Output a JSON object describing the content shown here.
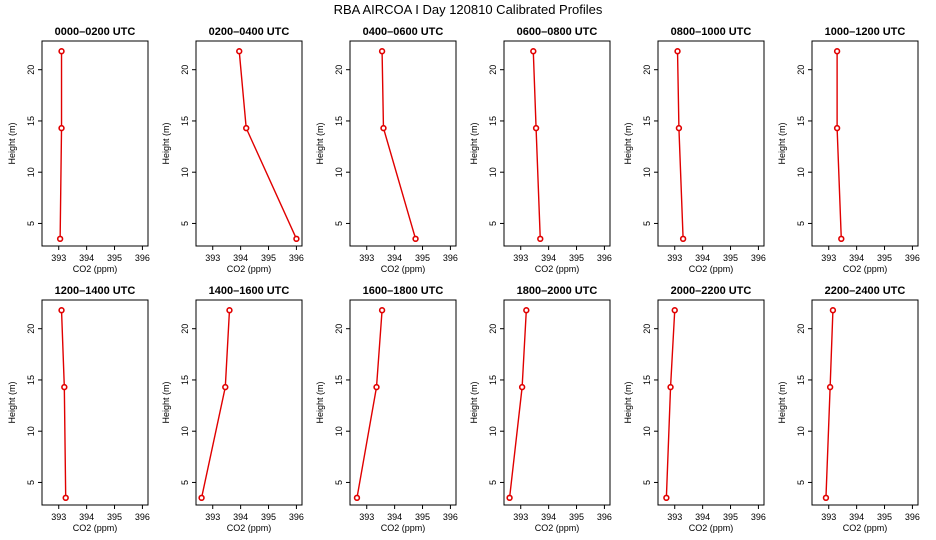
{
  "figure": {
    "title": "RBA AIRCOA I  Day 120810  Calibrated Profiles"
  },
  "colors": {
    "series": "#e00000",
    "frame": "#000000",
    "background": "#ffffff"
  },
  "chart_data": [
    {
      "type": "line",
      "title": "0000–0200 UTC",
      "xlabel": "CO2 (ppm)",
      "ylabel": "Height (m)",
      "xlim": [
        392.4,
        396.2
      ],
      "ylim": [
        2.8,
        22.8
      ],
      "xticks": [
        "393",
        "394",
        "395",
        "396"
      ],
      "yticks": [
        "5",
        "10",
        "15",
        "20"
      ],
      "grid": false,
      "series": [
        {
          "x": [
            393.05,
            393.1,
            393.1
          ],
          "y": [
            3.5,
            14.3,
            21.8
          ]
        }
      ]
    },
    {
      "type": "line",
      "title": "0200–0400 UTC",
      "xlabel": "CO2 (ppm)",
      "ylabel": "Height (m)",
      "xlim": [
        392.4,
        396.2
      ],
      "ylim": [
        2.8,
        22.8
      ],
      "xticks": [
        "393",
        "394",
        "395",
        "396"
      ],
      "yticks": [
        "5",
        "10",
        "15",
        "20"
      ],
      "grid": false,
      "series": [
        {
          "x": [
            396.0,
            394.2,
            393.95
          ],
          "y": [
            3.5,
            14.3,
            21.8
          ]
        }
      ]
    },
    {
      "type": "line",
      "title": "0400–0600 UTC",
      "xlabel": "CO2 (ppm)",
      "ylabel": "Height (m)",
      "xlim": [
        392.4,
        396.2
      ],
      "ylim": [
        2.8,
        22.8
      ],
      "xticks": [
        "393",
        "394",
        "395",
        "396"
      ],
      "yticks": [
        "5",
        "10",
        "15",
        "20"
      ],
      "grid": false,
      "series": [
        {
          "x": [
            394.75,
            393.6,
            393.55
          ],
          "y": [
            3.5,
            14.3,
            21.8
          ]
        }
      ]
    },
    {
      "type": "line",
      "title": "0600–0800 UTC",
      "xlabel": "CO2 (ppm)",
      "ylabel": "Height (m)",
      "xlim": [
        392.4,
        396.2
      ],
      "ylim": [
        2.8,
        22.8
      ],
      "xticks": [
        "393",
        "394",
        "395",
        "396"
      ],
      "yticks": [
        "5",
        "10",
        "15",
        "20"
      ],
      "grid": false,
      "series": [
        {
          "x": [
            393.7,
            393.55,
            393.45
          ],
          "y": [
            3.5,
            14.3,
            21.8
          ]
        }
      ]
    },
    {
      "type": "line",
      "title": "0800–1000 UTC",
      "xlabel": "CO2 (ppm)",
      "ylabel": "Height (m)",
      "xlim": [
        392.4,
        396.2
      ],
      "ylim": [
        2.8,
        22.8
      ],
      "xticks": [
        "393",
        "394",
        "395",
        "396"
      ],
      "yticks": [
        "5",
        "10",
        "15",
        "20"
      ],
      "grid": false,
      "series": [
        {
          "x": [
            393.3,
            393.15,
            393.1
          ],
          "y": [
            3.5,
            14.3,
            21.8
          ]
        }
      ]
    },
    {
      "type": "line",
      "title": "1000–1200 UTC",
      "xlabel": "CO2 (ppm)",
      "ylabel": "Height (m)",
      "xlim": [
        392.4,
        396.2
      ],
      "ylim": [
        2.8,
        22.8
      ],
      "xticks": [
        "393",
        "394",
        "395",
        "396"
      ],
      "yticks": [
        "5",
        "10",
        "15",
        "20"
      ],
      "grid": false,
      "series": [
        {
          "x": [
            393.45,
            393.3,
            393.3
          ],
          "y": [
            3.5,
            14.3,
            21.8
          ]
        }
      ]
    },
    {
      "type": "line",
      "title": "1200–1400 UTC",
      "xlabel": "CO2 (ppm)",
      "ylabel": "Height (m)",
      "xlim": [
        392.4,
        396.2
      ],
      "ylim": [
        2.8,
        22.8
      ],
      "xticks": [
        "393",
        "394",
        "395",
        "396"
      ],
      "yticks": [
        "5",
        "10",
        "15",
        "20"
      ],
      "grid": false,
      "series": [
        {
          "x": [
            393.25,
            393.2,
            393.1
          ],
          "y": [
            3.5,
            14.3,
            21.8
          ]
        }
      ]
    },
    {
      "type": "line",
      "title": "1400–1600 UTC",
      "xlabel": "CO2 (ppm)",
      "ylabel": "Height (m)",
      "xlim": [
        392.4,
        396.2
      ],
      "ylim": [
        2.8,
        22.8
      ],
      "xticks": [
        "393",
        "394",
        "395",
        "396"
      ],
      "yticks": [
        "5",
        "10",
        "15",
        "20"
      ],
      "grid": false,
      "series": [
        {
          "x": [
            392.6,
            393.45,
            393.6
          ],
          "y": [
            3.5,
            14.3,
            21.8
          ]
        }
      ]
    },
    {
      "type": "line",
      "title": "1600–1800 UTC",
      "xlabel": "CO2 (ppm)",
      "ylabel": "Height (m)",
      "xlim": [
        392.4,
        396.2
      ],
      "ylim": [
        2.8,
        22.8
      ],
      "xticks": [
        "393",
        "394",
        "395",
        "396"
      ],
      "yticks": [
        "5",
        "10",
        "15",
        "20"
      ],
      "grid": false,
      "series": [
        {
          "x": [
            392.65,
            393.35,
            393.55
          ],
          "y": [
            3.5,
            14.3,
            21.8
          ]
        }
      ]
    },
    {
      "type": "line",
      "title": "1800–2000 UTC",
      "xlabel": "CO2 (ppm)",
      "ylabel": "Height (m)",
      "xlim": [
        392.4,
        396.2
      ],
      "ylim": [
        2.8,
        22.8
      ],
      "xticks": [
        "393",
        "394",
        "395",
        "396"
      ],
      "yticks": [
        "5",
        "10",
        "15",
        "20"
      ],
      "grid": false,
      "series": [
        {
          "x": [
            392.6,
            393.05,
            393.2
          ],
          "y": [
            3.5,
            14.3,
            21.8
          ]
        }
      ]
    },
    {
      "type": "line",
      "title": "2000–2200 UTC",
      "xlabel": "CO2 (ppm)",
      "ylabel": "Height (m)",
      "xlim": [
        392.4,
        396.2
      ],
      "ylim": [
        2.8,
        22.8
      ],
      "xticks": [
        "393",
        "394",
        "395",
        "396"
      ],
      "yticks": [
        "5",
        "10",
        "15",
        "20"
      ],
      "grid": false,
      "series": [
        {
          "x": [
            392.7,
            392.85,
            393.0
          ],
          "y": [
            3.5,
            14.3,
            21.8
          ]
        }
      ]
    },
    {
      "type": "line",
      "title": "2200–2400 UTC",
      "xlabel": "CO2 (ppm)",
      "ylabel": "Height (m)",
      "xlim": [
        392.4,
        396.2
      ],
      "ylim": [
        2.8,
        22.8
      ],
      "xticks": [
        "393",
        "394",
        "395",
        "396"
      ],
      "yticks": [
        "5",
        "10",
        "15",
        "20"
      ],
      "grid": false,
      "series": [
        {
          "x": [
            392.9,
            393.05,
            393.15
          ],
          "y": [
            3.5,
            14.3,
            21.8
          ]
        }
      ]
    }
  ]
}
